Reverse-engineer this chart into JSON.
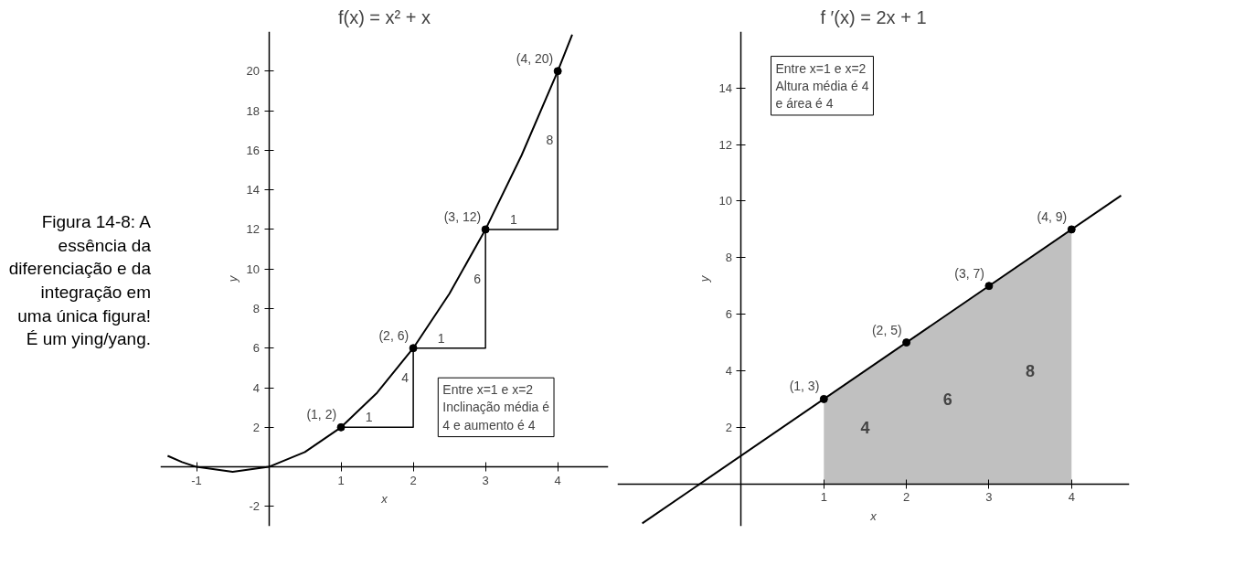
{
  "chart_data": [
    {
      "type": "line",
      "title": "f(x) = x² + x",
      "xlabel": "x",
      "ylabel": "y",
      "xlim": [
        -1.5,
        4.7
      ],
      "ylim": [
        -3,
        22
      ],
      "xticks": [
        -1,
        1,
        2,
        3,
        4
      ],
      "yticks": [
        -2,
        2,
        4,
        6,
        8,
        10,
        12,
        14,
        16,
        18,
        20
      ],
      "grid": false,
      "series": [
        {
          "color": "#000000",
          "x": [
            -1.4,
            -1.2,
            -1,
            -0.5,
            0,
            0.5,
            1,
            1.5,
            2,
            2.5,
            3,
            3.5,
            4,
            4.2
          ],
          "values": [
            0.56,
            0.24,
            0,
            -0.25,
            0,
            0.75,
            2,
            3.75,
            6,
            8.75,
            12,
            15.75,
            20,
            21.84
          ]
        },
        {
          "type": "step",
          "color": "#000000",
          "x": [
            1,
            2,
            3,
            4
          ],
          "values": [
            2,
            6,
            12,
            20
          ]
        },
        {
          "type": "scatter",
          "color": "#000000",
          "marker": "circle",
          "x": [
            1,
            2,
            3,
            4
          ],
          "values": [
            2,
            6,
            12,
            20
          ]
        }
      ],
      "annotations": [
        "Figura 14-8: A essência da diferenciação e da integração em uma única figura! É um ying/yang.",
        "Entre x=1 e x=2\nInclinação média é\n4 e aumento é 4",
        {
          "text": "(1, 2)",
          "x": 1,
          "y": 2
        },
        {
          "text": "(2, 6)",
          "x": 2,
          "y": 6
        },
        {
          "text": "(3, 12)",
          "x": 3,
          "y": 12
        },
        {
          "text": "(4, 20)",
          "x": 4,
          "y": 20
        },
        {
          "text": "1",
          "x": 1.5,
          "y": 2
        },
        {
          "text": "4",
          "x": 2,
          "y": 4
        },
        {
          "text": "1",
          "x": 2.5,
          "y": 6
        },
        {
          "text": "6",
          "x": 3,
          "y": 9
        },
        {
          "text": "1",
          "x": 3.5,
          "y": 12
        },
        {
          "text": "8",
          "x": 4,
          "y": 16
        }
      ]
    },
    {
      "type": "line",
      "title": "f ′(x) = 2x + 1",
      "xlabel": "x",
      "ylabel": "y",
      "xlim": [
        -1.5,
        4.7
      ],
      "ylim": [
        -1.5,
        16
      ],
      "xticks": [
        1,
        2,
        3,
        4
      ],
      "yticks": [
        2,
        4,
        6,
        8,
        10,
        12,
        14
      ],
      "grid": false,
      "series": [
        {
          "type": "area",
          "color": "#b0b0b0",
          "marker": "circle",
          "x": [
            1,
            2,
            3,
            4
          ],
          "values": [
            3,
            5,
            7,
            9
          ]
        },
        {
          "color": "#000000",
          "x": [
            -1.2,
            4.6
          ],
          "values": [
            -1.4,
            10.2
          ]
        }
      ],
      "annotations": [
        "Entre x=1 e x=2\nAltura média é 4\ne área é 4",
        {
          "text": "(1, 3)",
          "x": 1,
          "y": 3
        },
        {
          "text": "(2, 5)",
          "x": 2,
          "y": 5
        },
        {
          "text": "(3, 7)",
          "x": 3,
          "y": 7
        },
        {
          "text": "(4, 9)",
          "x": 4,
          "y": 9
        },
        "4",
        "6",
        "8"
      ]
    }
  ]
}
